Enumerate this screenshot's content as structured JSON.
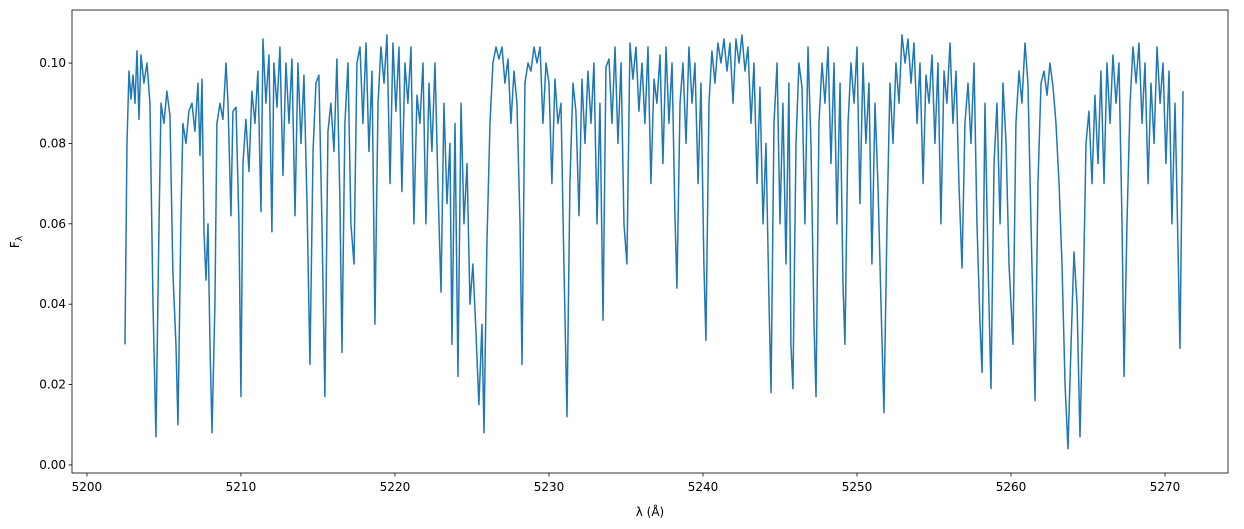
{
  "chart_data": {
    "type": "line",
    "xlabel": "λ (Å)",
    "ylabel": "F",
    "ylabel_sub": "λ",
    "color": "#1f77b4",
    "xlim": [
      5199.03,
      5274.09
    ],
    "ylim": [
      -0.002,
      0.1132
    ],
    "xticks": [
      5200,
      5210,
      5220,
      5230,
      5240,
      5250,
      5260,
      5270
    ],
    "yticks": [
      {
        "value": 0,
        "label": "0.00"
      },
      {
        "value": 0.02,
        "label": "0.02"
      },
      {
        "value": 0.04,
        "label": "0.04"
      },
      {
        "value": 0.06,
        "label": "0.06"
      },
      {
        "value": 0.08,
        "label": "0.08"
      },
      {
        "value": 0.1,
        "label": "0.10"
      }
    ],
    "x": [
      5202.47,
      5202.6,
      5202.73,
      5202.86,
      5202.99,
      5203.12,
      5203.25,
      5203.38,
      5203.51,
      5203.7,
      5203.9,
      5204.09,
      5204.29,
      5204.48,
      5204.68,
      5204.81,
      5205.0,
      5205.19,
      5205.39,
      5205.58,
      5205.78,
      5205.91,
      5206.1,
      5206.23,
      5206.43,
      5206.62,
      5206.82,
      5207.01,
      5207.21,
      5207.34,
      5207.47,
      5207.6,
      5207.73,
      5207.86,
      5207.99,
      5208.12,
      5208.31,
      5208.44,
      5208.64,
      5208.83,
      5209.03,
      5209.16,
      5209.35,
      5209.48,
      5209.68,
      5209.87,
      5210.0,
      5210.13,
      5210.32,
      5210.52,
      5210.71,
      5210.91,
      5211.1,
      5211.3,
      5211.43,
      5211.62,
      5211.82,
      5212.01,
      5212.14,
      5212.34,
      5212.53,
      5212.73,
      5212.92,
      5213.12,
      5213.31,
      5213.51,
      5213.7,
      5213.9,
      5214.09,
      5214.29,
      5214.48,
      5214.68,
      5214.87,
      5215.06,
      5215.26,
      5215.45,
      5215.65,
      5215.84,
      5216.04,
      5216.23,
      5216.43,
      5216.56,
      5216.75,
      5216.95,
      5217.14,
      5217.34,
      5217.53,
      5217.73,
      5217.92,
      5218.12,
      5218.31,
      5218.51,
      5218.7,
      5218.9,
      5219.09,
      5219.29,
      5219.48,
      5219.68,
      5219.87,
      5220.06,
      5220.26,
      5220.45,
      5220.65,
      5220.84,
      5221.04,
      5221.23,
      5221.43,
      5221.62,
      5221.82,
      5222.01,
      5222.21,
      5222.4,
      5222.6,
      5222.79,
      5222.99,
      5223.18,
      5223.38,
      5223.57,
      5223.7,
      5223.9,
      5224.09,
      5224.29,
      5224.48,
      5224.68,
      5224.87,
      5225.06,
      5225.26,
      5225.45,
      5225.65,
      5225.78,
      5225.97,
      5226.17,
      5226.36,
      5226.56,
      5226.75,
      5226.95,
      5227.14,
      5227.34,
      5227.53,
      5227.73,
      5227.92,
      5228.12,
      5228.25,
      5228.44,
      5228.64,
      5228.83,
      5229.03,
      5229.22,
      5229.42,
      5229.61,
      5229.81,
      5230.0,
      5230.19,
      5230.39,
      5230.58,
      5230.78,
      5230.97,
      5231.17,
      5231.36,
      5231.56,
      5231.75,
      5231.95,
      5232.14,
      5232.34,
      5232.53,
      5232.73,
      5232.92,
      5233.12,
      5233.31,
      5233.51,
      5233.7,
      5233.9,
      5234.09,
      5234.29,
      5234.48,
      5234.68,
      5234.87,
      5235.06,
      5235.26,
      5235.45,
      5235.65,
      5235.84,
      5236.04,
      5236.23,
      5236.43,
      5236.62,
      5236.82,
      5237.01,
      5237.21,
      5237.4,
      5237.6,
      5237.79,
      5237.99,
      5238.18,
      5238.31,
      5238.51,
      5238.7,
      5238.9,
      5239.09,
      5239.29,
      5239.48,
      5239.68,
      5239.87,
      5240.06,
      5240.19,
      5240.39,
      5240.58,
      5240.78,
      5240.97,
      5241.17,
      5241.36,
      5241.56,
      5241.75,
      5241.95,
      5242.14,
      5242.34,
      5242.53,
      5242.73,
      5242.92,
      5243.12,
      5243.31,
      5243.51,
      5243.7,
      5243.9,
      5244.09,
      5244.29,
      5244.42,
      5244.61,
      5244.81,
      5245.0,
      5245.19,
      5245.39,
      5245.58,
      5245.71,
      5245.84,
      5246.04,
      5246.23,
      5246.43,
      5246.62,
      5246.82,
      5247.01,
      5247.21,
      5247.34,
      5247.53,
      5247.73,
      5247.92,
      5248.12,
      5248.31,
      5248.51,
      5248.7,
      5248.9,
      5249.09,
      5249.22,
      5249.42,
      5249.61,
      5249.81,
      5250.0,
      5250.19,
      5250.39,
      5250.58,
      5250.78,
      5250.97,
      5251.17,
      5251.36,
      5251.56,
      5251.75,
      5251.95,
      5252.14,
      5252.34,
      5252.53,
      5252.73,
      5252.92,
      5253.12,
      5253.31,
      5253.51,
      5253.7,
      5253.9,
      5254.09,
      5254.29,
      5254.48,
      5254.68,
      5254.87,
      5255.06,
      5255.26,
      5255.45,
      5255.65,
      5255.84,
      5256.04,
      5256.23,
      5256.43,
      5256.62,
      5256.82,
      5257.01,
      5257.21,
      5257.4,
      5257.6,
      5257.79,
      5257.99,
      5258.12,
      5258.31,
      5258.51,
      5258.7,
      5258.9,
      5259.09,
      5259.29,
      5259.48,
      5259.68,
      5259.87,
      5260.13,
      5260.32,
      5260.52,
      5260.71,
      5260.91,
      5261.1,
      5261.3,
      5261.56,
      5261.75,
      5261.95,
      5262.14,
      5262.34,
      5262.53,
      5262.73,
      5262.92,
      5263.12,
      5263.31,
      5263.51,
      5263.7,
      5263.9,
      5264.09,
      5264.29,
      5264.48,
      5264.68,
      5264.87,
      5265.06,
      5265.26,
      5265.45,
      5265.65,
      5265.84,
      5266.04,
      5266.23,
      5266.43,
      5266.62,
      5266.82,
      5267.01,
      5267.21,
      5267.34,
      5267.53,
      5267.73,
      5267.92,
      5268.12,
      5268.31,
      5268.51,
      5268.7,
      5268.9,
      5269.09,
      5269.29,
      5269.48,
      5269.68,
      5269.87,
      5270.06,
      5270.26,
      5270.45,
      5270.65,
      5270.84,
      5270.97,
      5271.17
    ],
    "values": [
      0.03,
      0.08,
      0.098,
      0.091,
      0.097,
      0.09,
      0.103,
      0.086,
      0.102,
      0.095,
      0.1,
      0.09,
      0.04,
      0.007,
      0.06,
      0.09,
      0.085,
      0.093,
      0.087,
      0.048,
      0.03,
      0.01,
      0.06,
      0.085,
      0.08,
      0.088,
      0.09,
      0.083,
      0.095,
      0.077,
      0.096,
      0.058,
      0.046,
      0.06,
      0.03,
      0.008,
      0.04,
      0.085,
      0.09,
      0.086,
      0.1,
      0.09,
      0.062,
      0.088,
      0.089,
      0.06,
      0.017,
      0.075,
      0.086,
      0.073,
      0.093,
      0.085,
      0.098,
      0.063,
      0.106,
      0.09,
      0.102,
      0.058,
      0.1,
      0.089,
      0.104,
      0.072,
      0.1,
      0.085,
      0.101,
      0.062,
      0.1,
      0.08,
      0.097,
      0.065,
      0.025,
      0.078,
      0.095,
      0.097,
      0.06,
      0.017,
      0.083,
      0.09,
      0.078,
      0.101,
      0.065,
      0.028,
      0.085,
      0.1,
      0.06,
      0.05,
      0.1,
      0.104,
      0.085,
      0.105,
      0.078,
      0.098,
      0.035,
      0.09,
      0.104,
      0.095,
      0.107,
      0.07,
      0.105,
      0.088,
      0.104,
      0.068,
      0.1,
      0.09,
      0.104,
      0.06,
      0.092,
      0.085,
      0.1,
      0.06,
      0.095,
      0.078,
      0.1,
      0.07,
      0.043,
      0.09,
      0.065,
      0.08,
      0.03,
      0.085,
      0.022,
      0.09,
      0.06,
      0.075,
      0.04,
      0.05,
      0.033,
      0.015,
      0.035,
      0.008,
      0.055,
      0.085,
      0.1,
      0.104,
      0.101,
      0.104,
      0.095,
      0.101,
      0.085,
      0.098,
      0.09,
      0.06,
      0.025,
      0.095,
      0.1,
      0.098,
      0.104,
      0.1,
      0.104,
      0.085,
      0.1,
      0.095,
      0.07,
      0.096,
      0.085,
      0.09,
      0.05,
      0.012,
      0.07,
      0.095,
      0.088,
      0.062,
      0.096,
      0.08,
      0.098,
      0.085,
      0.1,
      0.06,
      0.09,
      0.036,
      0.099,
      0.101,
      0.085,
      0.104,
      0.08,
      0.1,
      0.06,
      0.05,
      0.105,
      0.096,
      0.104,
      0.088,
      0.1,
      0.085,
      0.104,
      0.07,
      0.096,
      0.09,
      0.102,
      0.075,
      0.104,
      0.085,
      0.1,
      0.062,
      0.044,
      0.09,
      0.1,
      0.08,
      0.104,
      0.09,
      0.1,
      0.07,
      0.095,
      0.05,
      0.031,
      0.09,
      0.103,
      0.095,
      0.105,
      0.1,
      0.106,
      0.098,
      0.105,
      0.09,
      0.106,
      0.1,
      0.107,
      0.098,
      0.104,
      0.085,
      0.1,
      0.07,
      0.094,
      0.06,
      0.08,
      0.04,
      0.018,
      0.085,
      0.1,
      0.06,
      0.09,
      0.05,
      0.095,
      0.03,
      0.019,
      0.08,
      0.1,
      0.094,
      0.06,
      0.104,
      0.08,
      0.035,
      0.017,
      0.085,
      0.1,
      0.09,
      0.104,
      0.075,
      0.1,
      0.06,
      0.095,
      0.045,
      0.03,
      0.085,
      0.1,
      0.09,
      0.104,
      0.065,
      0.1,
      0.08,
      0.095,
      0.05,
      0.09,
      0.07,
      0.04,
      0.013,
      0.06,
      0.095,
      0.08,
      0.1,
      0.09,
      0.107,
      0.1,
      0.106,
      0.095,
      0.105,
      0.085,
      0.1,
      0.07,
      0.097,
      0.09,
      0.102,
      0.08,
      0.1,
      0.06,
      0.098,
      0.09,
      0.105,
      0.085,
      0.098,
      0.07,
      0.049,
      0.085,
      0.095,
      0.08,
      0.1,
      0.06,
      0.035,
      0.023,
      0.09,
      0.05,
      0.019,
      0.075,
      0.09,
      0.06,
      0.095,
      0.08,
      0.05,
      0.03,
      0.085,
      0.098,
      0.09,
      0.105,
      0.095,
      0.06,
      0.016,
      0.07,
      0.095,
      0.098,
      0.092,
      0.1,
      0.094,
      0.085,
      0.07,
      0.05,
      0.02,
      0.004,
      0.03,
      0.053,
      0.04,
      0.007,
      0.04,
      0.08,
      0.088,
      0.07,
      0.092,
      0.075,
      0.098,
      0.07,
      0.1,
      0.085,
      0.102,
      0.09,
      0.1,
      0.06,
      0.022,
      0.06,
      0.09,
      0.104,
      0.095,
      0.105,
      0.085,
      0.1,
      0.07,
      0.095,
      0.08,
      0.104,
      0.09,
      0.1,
      0.075,
      0.098,
      0.06,
      0.09,
      0.055,
      0.029,
      0.093
    ]
  }
}
